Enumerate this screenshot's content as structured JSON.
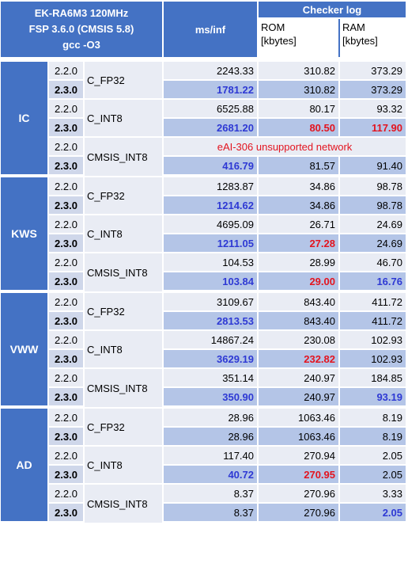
{
  "header": {
    "board": "EK-RA6M3 120MHz",
    "fsp": "FSP 3.6.0 (CMSIS 5.8)",
    "compiler": "gcc -O3",
    "ms_inf": "ms/inf",
    "checker_log": "Checker log",
    "rom_line1": "ROM",
    "rom_line2": "[kbytes]",
    "ram_line1": "RAM",
    "ram_line2": "[kbytes]"
  },
  "colors": {
    "header_blue": "#4472c4",
    "row_light": "#e9ecf4",
    "row_dark": "#b4c5e7",
    "highlight_blue": "#2e39d4",
    "highlight_red": "#e3141f"
  },
  "groups": [
    {
      "model": "IC",
      "configs": [
        {
          "name": "C_FP32",
          "rows": [
            {
              "ver": "2.2.0",
              "ms": "2243.33",
              "rom": "310.82",
              "ram": "373.29"
            },
            {
              "ver": "2.3.0",
              "ms": "1781.22",
              "rom": "310.82",
              "ram": "373.29"
            }
          ]
        },
        {
          "name": "C_INT8",
          "rows": [
            {
              "ver": "2.2.0",
              "ms": "6525.88",
              "rom": "80.17",
              "ram": "93.32"
            },
            {
              "ver": "2.3.0",
              "ms": "2681.20",
              "rom": "80.50",
              "ram": "117.90"
            }
          ]
        },
        {
          "name": "CMSIS_INT8",
          "rows": [
            {
              "ver": "2.2.0",
              "note": "eAI-306  unsupported network"
            },
            {
              "ver": "2.3.0",
              "ms": "416.79",
              "rom": "81.57",
              "ram": "91.40"
            }
          ]
        }
      ]
    },
    {
      "model": "KWS",
      "configs": [
        {
          "name": "C_FP32",
          "rows": [
            {
              "ver": "2.2.0",
              "ms": "1283.87",
              "rom": "34.86",
              "ram": "98.78"
            },
            {
              "ver": "2.3.0",
              "ms": "1214.62",
              "rom": "34.86",
              "ram": "98.78"
            }
          ]
        },
        {
          "name": "C_INT8",
          "rows": [
            {
              "ver": "2.2.0",
              "ms": "4695.09",
              "rom": "26.71",
              "ram": "24.69"
            },
            {
              "ver": "2.3.0",
              "ms": "1211.05",
              "rom": "27.28",
              "ram": "24.69"
            }
          ]
        },
        {
          "name": "CMSIS_INT8",
          "rows": [
            {
              "ver": "2.2.0",
              "ms": "104.53",
              "rom": "28.99",
              "ram": "46.70"
            },
            {
              "ver": "2.3.0",
              "ms": "103.84",
              "rom": "29.00",
              "ram": "16.76"
            }
          ]
        }
      ]
    },
    {
      "model": "VWW",
      "configs": [
        {
          "name": "C_FP32",
          "rows": [
            {
              "ver": "2.2.0",
              "ms": "3109.67",
              "rom": "843.40",
              "ram": "411.72"
            },
            {
              "ver": "2.3.0",
              "ms": "2813.53",
              "rom": "843.40",
              "ram": "411.72"
            }
          ]
        },
        {
          "name": "C_INT8",
          "rows": [
            {
              "ver": "2.2.0",
              "ms": "14867.24",
              "rom": "230.08",
              "ram": "102.93"
            },
            {
              "ver": "2.3.0",
              "ms": "3629.19",
              "rom": "232.82",
              "ram": "102.93"
            }
          ]
        },
        {
          "name": "CMSIS_INT8",
          "rows": [
            {
              "ver": "2.2.0",
              "ms": "351.14",
              "rom": "240.97",
              "ram": "184.85"
            },
            {
              "ver": "2.3.0",
              "ms": "350.90",
              "rom": "240.97",
              "ram": "93.19"
            }
          ]
        }
      ]
    },
    {
      "model": "AD",
      "configs": [
        {
          "name": "C_FP32",
          "rows": [
            {
              "ver": "2.2.0",
              "ms": "28.96",
              "rom": "1063.46",
              "ram": "8.19"
            },
            {
              "ver": "2.3.0",
              "ms": "28.96",
              "rom": "1063.46",
              "ram": "8.19"
            }
          ]
        },
        {
          "name": "C_INT8",
          "rows": [
            {
              "ver": "2.2.0",
              "ms": "117.40",
              "rom": "270.94",
              "ram": "2.05"
            },
            {
              "ver": "2.3.0",
              "ms": "40.72",
              "rom": "270.95",
              "ram": "2.05"
            }
          ]
        },
        {
          "name": "CMSIS_INT8",
          "rows": [
            {
              "ver": "2.2.0",
              "ms": "8.37",
              "rom": "270.96",
              "ram": "3.33"
            },
            {
              "ver": "2.3.0",
              "ms": "8.37",
              "rom": "270.96",
              "ram": "2.05"
            }
          ]
        }
      ]
    }
  ]
}
